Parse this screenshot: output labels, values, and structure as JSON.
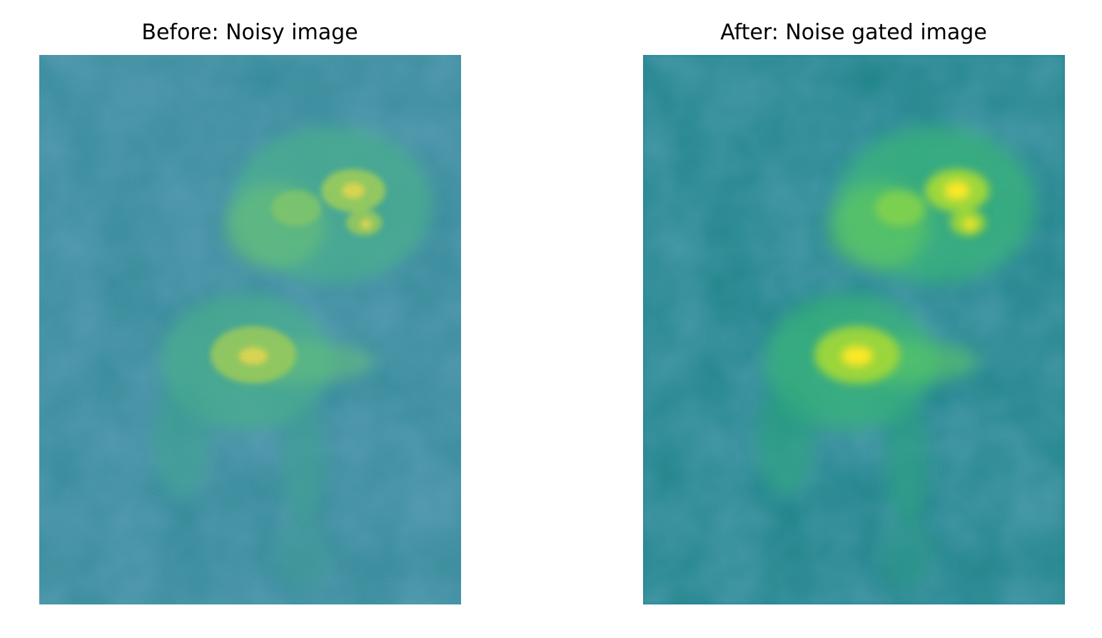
{
  "panels": [
    {
      "title": "Before: Noisy image",
      "variant": "noisy"
    },
    {
      "title": "After: Noise gated image",
      "variant": "smoothed"
    }
  ],
  "colormap": {
    "name": "viridis",
    "background": "#21858c",
    "dark": "#2a6a8e",
    "mid": "#3bb47a",
    "bright": "#a8db34",
    "peak": "#fde725"
  }
}
